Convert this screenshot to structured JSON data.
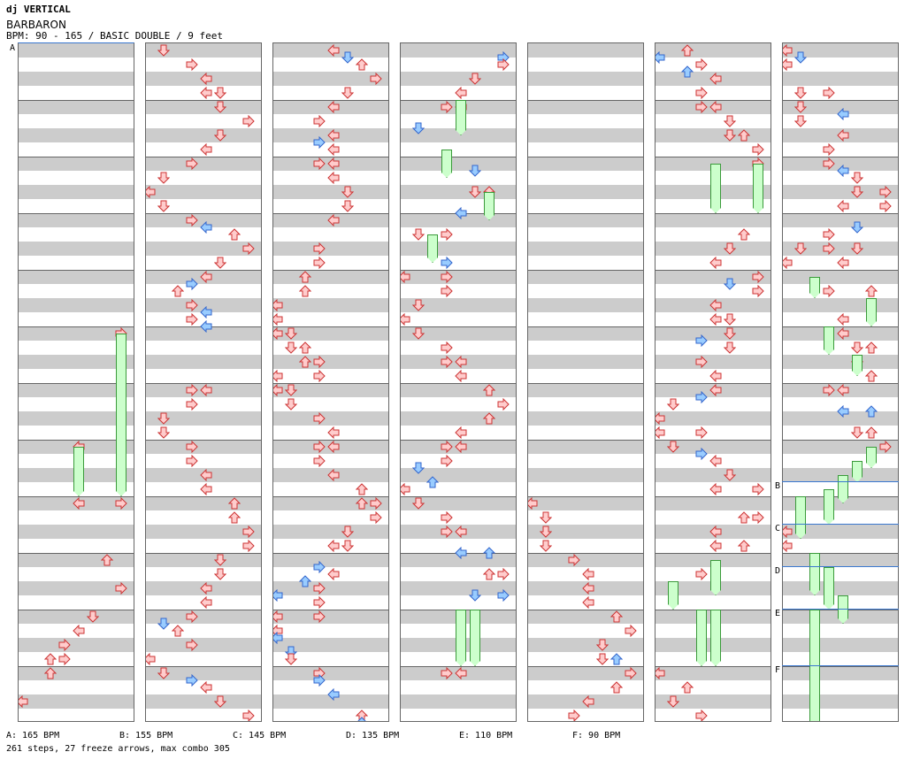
{
  "header": {
    "artist": "dj VERTICAL",
    "title": "BARBARON",
    "info": "BPM: 90 - 165 / BASIC DOUBLE / 9 feet"
  },
  "sections": [
    "A",
    "B",
    "C",
    "D",
    "E",
    "F"
  ],
  "bpm_legend": [
    "A: 165 BPM",
    "B: 155 BPM",
    "C: 145 BPM",
    "D: 135 BPM",
    "E: 110 BPM",
    "F: 90 BPM"
  ],
  "stats": "261 steps, 27 freeze arrows, max combo 305",
  "colors": {
    "stripe": "#cccccc",
    "red_arrow": "#ffcccc",
    "red_arrow_outline": "#cc3333",
    "blue_arrow": "#99ccff",
    "blue_arrow_outline": "#3366cc",
    "freeze_body": "#ccffcc",
    "freeze_outline": "#3a9a3a",
    "bpm_marker": "#3a78d0"
  }
}
